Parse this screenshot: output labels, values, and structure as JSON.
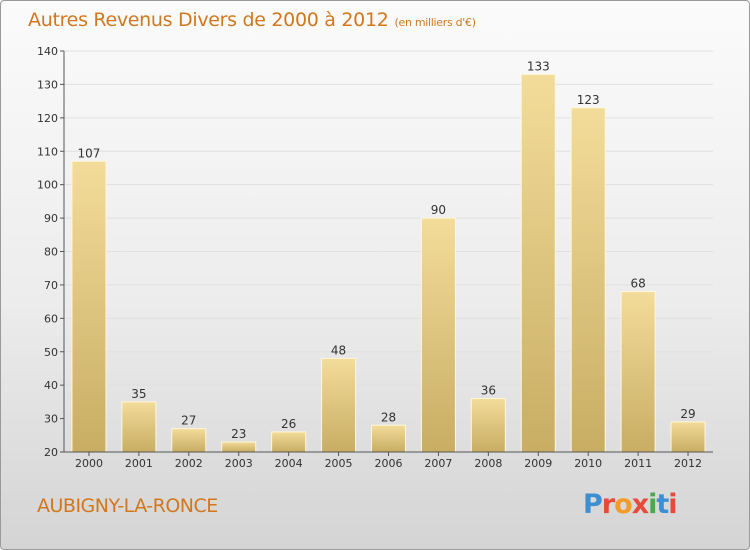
{
  "header": {
    "title": "Autres Revenus Divers de 2000 à 2012",
    "unit": "(en milliers d'€)"
  },
  "footer": {
    "city": "AUBIGNY-LA-RONCE"
  },
  "logo": {
    "text": "Proxiti",
    "colors": [
      "#3d8fd1",
      "#e84a3a",
      "#f29b26",
      "#e84a3a",
      "#4aa84e",
      "#3d8fd1",
      "#e84a3a"
    ]
  },
  "colors": {
    "bar_light": "#f3dc9a",
    "bar_dark": "#c8ad63",
    "grid": "#e0e0e0",
    "axis": "#555555",
    "text": "#333333",
    "accent": "#d2771c"
  },
  "chart_data": {
    "type": "bar",
    "categories": [
      "2000",
      "2001",
      "2002",
      "2003",
      "2004",
      "2005",
      "2006",
      "2007",
      "2008",
      "2009",
      "2010",
      "2011",
      "2012"
    ],
    "values": [
      107,
      35,
      27,
      23,
      26,
      48,
      28,
      90,
      36,
      133,
      123,
      68,
      29
    ],
    "ylim": [
      20,
      140
    ],
    "yticks": [
      20,
      30,
      40,
      50,
      60,
      70,
      80,
      90,
      100,
      110,
      120,
      130,
      140
    ],
    "grid": true,
    "legend": "none"
  }
}
